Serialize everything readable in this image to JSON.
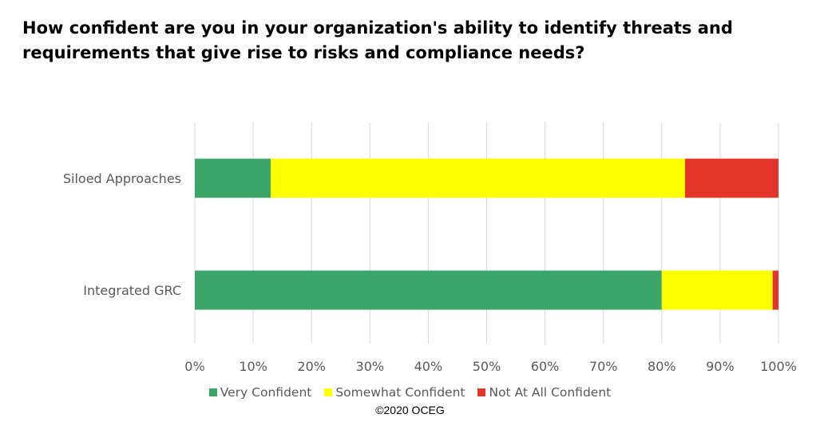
{
  "title": "How confident are you in your organization's ability to identify threats and requirements that give rise to risks and compliance needs?",
  "copyright": "©2020 OCEG",
  "chart_data": {
    "type": "bar",
    "orientation": "horizontal",
    "stacked": "percent",
    "categories": [
      "Siloed Approaches",
      "Integrated GRC"
    ],
    "series": [
      {
        "name": "Very Confident",
        "color": "#3ca66a",
        "values": [
          13,
          80
        ]
      },
      {
        "name": "Somewhat Confident",
        "color": "#ffff00",
        "values": [
          71,
          19
        ]
      },
      {
        "name": "Not At All Confident",
        "color": "#e3342a",
        "values": [
          16,
          1
        ]
      }
    ],
    "xlim": [
      0,
      100
    ],
    "x_ticks": [
      "0%",
      "10%",
      "20%",
      "30%",
      "40%",
      "50%",
      "60%",
      "70%",
      "80%",
      "90%",
      "100%"
    ],
    "grid": "vertical",
    "legend_position": "bottom"
  }
}
